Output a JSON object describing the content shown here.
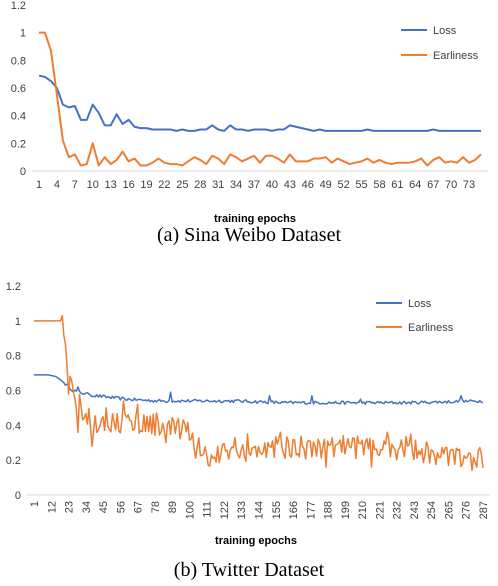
{
  "colors": {
    "loss": "#4472c4",
    "earliness": "#ed7d31",
    "axis": "#d9d9d9",
    "text": "#404040"
  },
  "chart_data": [
    {
      "type": "line",
      "caption": "(a) Sina Weibo Dataset",
      "xlabel": "training epochs",
      "ylabel": "",
      "ylim": [
        0,
        1.2
      ],
      "yticks": [
        "0",
        "0.2",
        "0.4",
        "0.6",
        "0.8",
        "1",
        "1.2"
      ],
      "xticks": [
        "1",
        "4",
        "7",
        "10",
        "13",
        "16",
        "19",
        "22",
        "25",
        "28",
        "31",
        "34",
        "37",
        "40",
        "43",
        "46",
        "49",
        "52",
        "55",
        "58",
        "61",
        "64",
        "67",
        "70",
        "73"
      ],
      "grid": false,
      "legend_position": "top-right",
      "series": [
        {
          "name": "Loss",
          "color": "#4472c4",
          "values": [
            0.69,
            0.68,
            0.65,
            0.6,
            0.48,
            0.46,
            0.47,
            0.37,
            0.37,
            0.48,
            0.42,
            0.33,
            0.33,
            0.41,
            0.34,
            0.37,
            0.32,
            0.31,
            0.31,
            0.3,
            0.3,
            0.3,
            0.3,
            0.29,
            0.3,
            0.29,
            0.29,
            0.3,
            0.3,
            0.33,
            0.3,
            0.29,
            0.33,
            0.3,
            0.3,
            0.29,
            0.3,
            0.3,
            0.3,
            0.29,
            0.3,
            0.3,
            0.33,
            0.32,
            0.31,
            0.3,
            0.29,
            0.3,
            0.29,
            0.29,
            0.29,
            0.29,
            0.29,
            0.29,
            0.29,
            0.3,
            0.29,
            0.29,
            0.29,
            0.29,
            0.29,
            0.29,
            0.29,
            0.29,
            0.29,
            0.29,
            0.3,
            0.29,
            0.29,
            0.29,
            0.29,
            0.29,
            0.29,
            0.29,
            0.29
          ]
        },
        {
          "name": "Earliness",
          "color": "#ed7d31",
          "values": [
            1.0,
            1.0,
            0.87,
            0.55,
            0.22,
            0.1,
            0.12,
            0.04,
            0.05,
            0.2,
            0.04,
            0.1,
            0.05,
            0.08,
            0.14,
            0.07,
            0.09,
            0.04,
            0.04,
            0.06,
            0.09,
            0.06,
            0.05,
            0.05,
            0.04,
            0.07,
            0.1,
            0.08,
            0.05,
            0.11,
            0.09,
            0.05,
            0.12,
            0.1,
            0.07,
            0.09,
            0.11,
            0.06,
            0.11,
            0.11,
            0.09,
            0.06,
            0.12,
            0.07,
            0.07,
            0.07,
            0.09,
            0.09,
            0.1,
            0.06,
            0.09,
            0.07,
            0.05,
            0.06,
            0.07,
            0.09,
            0.06,
            0.08,
            0.06,
            0.05,
            0.06,
            0.06,
            0.06,
            0.07,
            0.09,
            0.04,
            0.08,
            0.1,
            0.06,
            0.07,
            0.06,
            0.1,
            0.06,
            0.08,
            0.12
          ]
        }
      ]
    },
    {
      "type": "line",
      "caption": "(b) Twitter Dataset",
      "xlabel": "training epochs",
      "ylabel": "",
      "ylim": [
        0,
        1.2
      ],
      "yticks": [
        "0",
        "0.2",
        "0.4",
        "0.6",
        "0.8",
        "1",
        "1.2"
      ],
      "xticks": [
        "1",
        "12",
        "23",
        "34",
        "45",
        "56",
        "67",
        "78",
        "89",
        "100",
        "111",
        "122",
        "133",
        "144",
        "155",
        "166",
        "177",
        "188",
        "199",
        "210",
        "221",
        "232",
        "243",
        "254",
        "265",
        "276",
        "287"
      ],
      "grid": false,
      "legend_position": "top-right",
      "loss_keypoints": [
        [
          1,
          0.69
        ],
        [
          10,
          0.69
        ],
        [
          15,
          0.68
        ],
        [
          18,
          0.66
        ],
        [
          22,
          0.63
        ],
        [
          26,
          0.6
        ],
        [
          30,
          0.59
        ],
        [
          34,
          0.58
        ],
        [
          40,
          0.57
        ],
        [
          50,
          0.56
        ],
        [
          60,
          0.55
        ],
        [
          80,
          0.54
        ],
        [
          100,
          0.54
        ],
        [
          130,
          0.54
        ],
        [
          160,
          0.53
        ],
        [
          200,
          0.53
        ],
        [
          240,
          0.53
        ],
        [
          287,
          0.54
        ]
      ],
      "loss_spikes": [
        [
          29,
          0.62
        ],
        [
          36,
          0.58
        ],
        [
          88,
          0.59
        ],
        [
          151,
          0.57
        ],
        [
          178,
          0.57
        ],
        [
          209,
          0.55
        ],
        [
          273,
          0.57
        ]
      ],
      "earliness_keypoints": [
        [
          1,
          1.0
        ],
        [
          10,
          1.0
        ],
        [
          16,
          1.0
        ],
        [
          19,
          1.0
        ],
        [
          21,
          0.83
        ],
        [
          23,
          0.72
        ],
        [
          25,
          0.62
        ],
        [
          28,
          0.55
        ],
        [
          32,
          0.48
        ],
        [
          36,
          0.45
        ],
        [
          40,
          0.43
        ],
        [
          50,
          0.42
        ],
        [
          60,
          0.42
        ],
        [
          70,
          0.41
        ],
        [
          80,
          0.41
        ],
        [
          90,
          0.38
        ],
        [
          100,
          0.35
        ],
        [
          110,
          0.23
        ],
        [
          120,
          0.24
        ],
        [
          130,
          0.27
        ],
        [
          140,
          0.25
        ],
        [
          150,
          0.26
        ],
        [
          160,
          0.27
        ],
        [
          170,
          0.27
        ],
        [
          180,
          0.28
        ],
        [
          190,
          0.28
        ],
        [
          200,
          0.29
        ],
        [
          210,
          0.27
        ],
        [
          220,
          0.27
        ],
        [
          230,
          0.27
        ],
        [
          240,
          0.27
        ],
        [
          250,
          0.25
        ],
        [
          260,
          0.24
        ],
        [
          270,
          0.22
        ],
        [
          280,
          0.21
        ],
        [
          287,
          0.21
        ]
      ],
      "earliness_spikes": [
        [
          19,
          1.03
        ],
        [
          23,
          0.58
        ],
        [
          29,
          0.36
        ],
        [
          38,
          0.28
        ],
        [
          47,
          0.5
        ],
        [
          58,
          0.54
        ],
        [
          67,
          0.52
        ],
        [
          85,
          0.3
        ],
        [
          104,
          0.21
        ],
        [
          112,
          0.17
        ],
        [
          137,
          0.35
        ],
        [
          158,
          0.36
        ],
        [
          187,
          0.16
        ],
        [
          198,
          0.34
        ],
        [
          216,
          0.16
        ],
        [
          226,
          0.36
        ],
        [
          241,
          0.35
        ],
        [
          265,
          0.17
        ],
        [
          283,
          0.16
        ]
      ],
      "series": [
        {
          "name": "Loss",
          "color": "#4472c4"
        },
        {
          "name": "Earliness",
          "color": "#ed7d31"
        }
      ]
    }
  ]
}
